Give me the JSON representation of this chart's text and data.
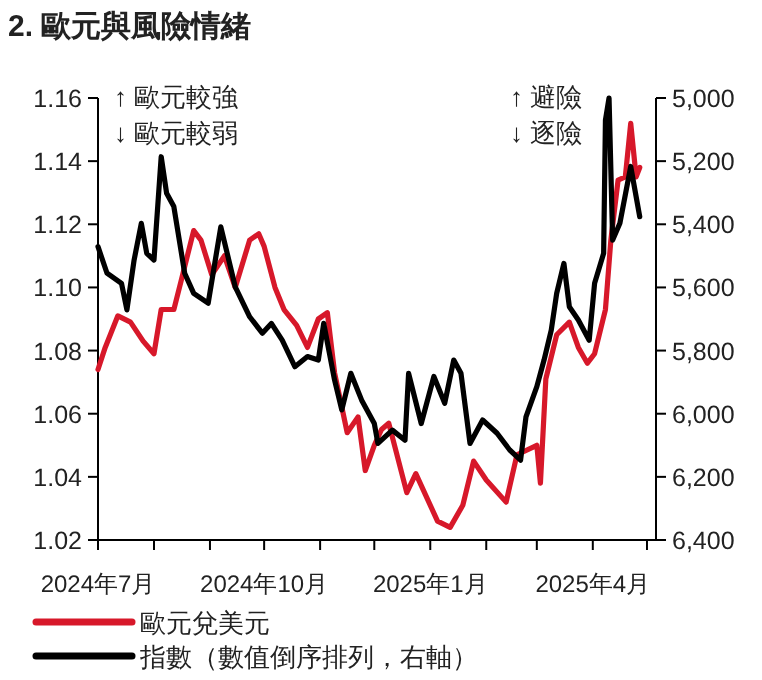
{
  "chart_data": {
    "type": "line",
    "title": "2. 歐元與風險情緒",
    "annotations": [
      "↑ 歐元較強",
      "↓ 歐元較弱",
      "↑ 避險",
      "↓ 逐險"
    ],
    "xlim": [
      "2024-07-01",
      "2025-05-06"
    ],
    "xticks": [
      {
        "value": "2024-07-01",
        "label": "2024年7月"
      },
      {
        "value": "2024-08-01",
        "label": null
      },
      {
        "value": "2024-09-01",
        "label": null
      },
      {
        "value": "2024-10-01",
        "label": "2024年10月"
      },
      {
        "value": "2024-11-01",
        "label": null
      },
      {
        "value": "2024-12-01",
        "label": null
      },
      {
        "value": "2025-01-01",
        "label": "2025年1月"
      },
      {
        "value": "2025-02-01",
        "label": null
      },
      {
        "value": "2025-03-01",
        "label": null
      },
      {
        "value": "2025-04-01",
        "label": "2025年4月"
      },
      {
        "value": "2025-05-01",
        "label": null
      }
    ],
    "ylim": [
      1.02,
      1.16
    ],
    "yticks": [
      {
        "value": 1.02,
        "label": "1.02"
      },
      {
        "value": 1.04,
        "label": "1.04"
      },
      {
        "value": 1.06,
        "label": "1.06"
      },
      {
        "value": 1.08,
        "label": "1.08"
      },
      {
        "value": 1.1,
        "label": "1.10"
      },
      {
        "value": 1.12,
        "label": "1.12"
      },
      {
        "value": 1.14,
        "label": "1.14"
      },
      {
        "value": 1.16,
        "label": "1.16"
      }
    ],
    "y2lim": [
      6400,
      5000
    ],
    "y2ticks": [
      {
        "value": 5000,
        "label": "5,000"
      },
      {
        "value": 5200,
        "label": "5,200"
      },
      {
        "value": 5400,
        "label": "5,400"
      },
      {
        "value": 5600,
        "label": "5,600"
      },
      {
        "value": 5800,
        "label": "5,800"
      },
      {
        "value": 6000,
        "label": "6,000"
      },
      {
        "value": 6200,
        "label": "6,200"
      },
      {
        "value": 6400,
        "label": "6,400"
      }
    ],
    "legend": "bottom",
    "series": [
      {
        "name": "歐元兌美元",
        "color": "#d7182a",
        "x": [
          "2024-07-01",
          "2024-07-05",
          "2024-07-12",
          "2024-07-19",
          "2024-07-26",
          "2024-08-01",
          "2024-08-05",
          "2024-08-12",
          "2024-08-16",
          "2024-08-23",
          "2024-08-27",
          "2024-09-02",
          "2024-09-09",
          "2024-09-15",
          "2024-09-23",
          "2024-09-28",
          "2024-10-01",
          "2024-10-07",
          "2024-10-12",
          "2024-10-19",
          "2024-10-25",
          "2024-10-31",
          "2024-11-05",
          "2024-11-09",
          "2024-11-16",
          "2024-11-22",
          "2024-11-26",
          "2024-12-01",
          "2024-12-05",
          "2024-12-09",
          "2024-12-19",
          "2024-12-24",
          "2025-01-05",
          "2025-01-12",
          "2025-01-19",
          "2025-01-25",
          "2025-02-01",
          "2025-02-12",
          "2025-02-18",
          "2025-03-01",
          "2025-03-03",
          "2025-03-06",
          "2025-03-12",
          "2025-03-19",
          "2025-03-24",
          "2025-03-29",
          "2025-04-02",
          "2025-04-08",
          "2025-04-11",
          "2025-04-15",
          "2025-04-19",
          "2025-04-22",
          "2025-04-25",
          "2025-04-27"
        ],
        "values": [
          1.074,
          1.081,
          1.091,
          1.089,
          1.083,
          1.079,
          1.093,
          1.093,
          1.102,
          1.118,
          1.115,
          1.104,
          1.11,
          1.1,
          1.115,
          1.117,
          1.113,
          1.1,
          1.093,
          1.088,
          1.081,
          1.09,
          1.092,
          1.073,
          1.054,
          1.059,
          1.042,
          1.05,
          1.055,
          1.057,
          1.035,
          1.041,
          1.026,
          1.024,
          1.031,
          1.045,
          1.039,
          1.032,
          1.047,
          1.05,
          1.038,
          1.071,
          1.085,
          1.089,
          1.081,
          1.076,
          1.079,
          1.093,
          1.115,
          1.134,
          1.135,
          1.152,
          1.135,
          1.138
        ]
      },
      {
        "name": "指數（數值倒序排列，右軸）",
        "color": "#000000",
        "axis": "y2",
        "x": [
          "2024-07-01",
          "2024-07-06",
          "2024-07-14",
          "2024-07-17",
          "2024-07-21",
          "2024-07-25",
          "2024-07-28",
          "2024-08-01",
          "2024-08-05",
          "2024-08-08",
          "2024-08-12",
          "2024-08-18",
          "2024-08-23",
          "2024-08-31",
          "2024-09-07",
          "2024-09-15",
          "2024-09-23",
          "2024-09-30",
          "2024-10-05",
          "2024-10-11",
          "2024-10-18",
          "2024-10-25",
          "2024-10-31",
          "2024-11-03",
          "2024-11-09",
          "2024-11-13",
          "2024-11-18",
          "2024-11-24",
          "2024-12-01",
          "2024-12-03",
          "2024-12-11",
          "2024-12-18",
          "2024-12-20",
          "2024-12-27",
          "2025-01-03",
          "2025-01-09",
          "2025-01-14",
          "2025-01-18",
          "2025-01-23",
          "2025-01-30",
          "2025-02-07",
          "2025-02-14",
          "2025-02-20",
          "2025-02-23",
          "2025-03-01",
          "2025-03-05",
          "2025-03-09",
          "2025-03-12",
          "2025-03-16",
          "2025-03-19",
          "2025-03-24",
          "2025-03-30",
          "2025-04-02",
          "2025-04-07",
          "2025-04-08",
          "2025-04-10",
          "2025-04-12",
          "2025-04-16",
          "2025-04-22",
          "2025-04-27"
        ],
        "values": [
          5471,
          5555,
          5587,
          5671,
          5513,
          5397,
          5492,
          5513,
          5186,
          5302,
          5344,
          5555,
          5619,
          5650,
          5408,
          5598,
          5693,
          5745,
          5714,
          5767,
          5851,
          5819,
          5830,
          5714,
          5893,
          5988,
          5872,
          5957,
          6031,
          6094,
          6052,
          6084,
          5872,
          6031,
          5882,
          5967,
          5830,
          5872,
          6094,
          6020,
          6062,
          6115,
          6147,
          6010,
          5914,
          5830,
          5735,
          5619,
          5524,
          5661,
          5703,
          5767,
          5587,
          5492,
          5070,
          5000,
          5450,
          5397,
          5217,
          5376
        ]
      }
    ]
  }
}
